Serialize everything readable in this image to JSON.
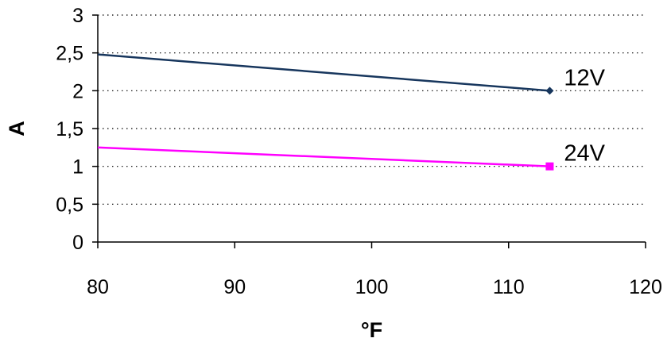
{
  "chart_data": {
    "type": "line",
    "title": "",
    "xlabel": "°F",
    "ylabel": "A",
    "xlim": [
      80,
      120
    ],
    "ylim": [
      0,
      3
    ],
    "x_ticks": [
      80,
      90,
      100,
      110,
      120
    ],
    "y_ticks": [
      0,
      0.5,
      1,
      1.5,
      2,
      2.5,
      3
    ],
    "y_tick_labels": [
      "0",
      "0,5",
      "1",
      "1,5",
      "2",
      "2,5",
      "3"
    ],
    "x_tick_labels": [
      "80",
      "90",
      "100",
      "110",
      "120"
    ],
    "grid": "horizontal dotted",
    "legend": "none (series labeled at line ends)",
    "series": [
      {
        "name": "12V",
        "color": "#17365d",
        "marker": "diamond",
        "points": [
          [
            80,
            2.48
          ],
          [
            113,
            2.0
          ]
        ]
      },
      {
        "name": "24V",
        "color": "#ff00ff",
        "marker": "square",
        "points": [
          [
            80,
            1.25
          ],
          [
            113,
            1.0
          ]
        ]
      }
    ]
  }
}
